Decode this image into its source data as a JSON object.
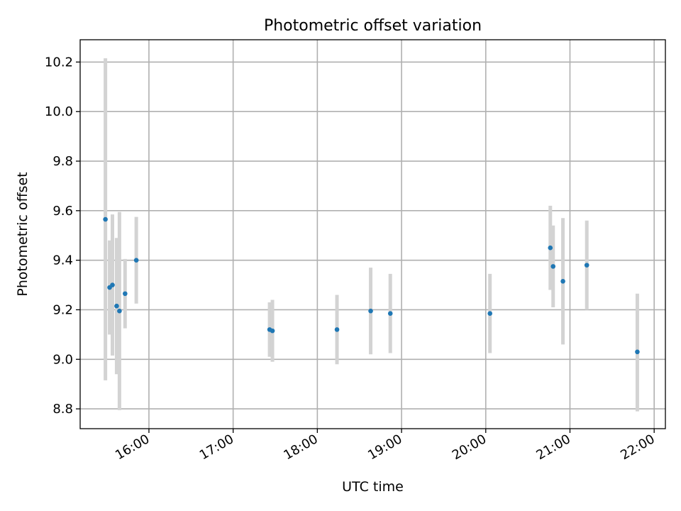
{
  "chart_data": {
    "type": "scatter",
    "title": "Photometric offset variation",
    "xlabel": "UTC time",
    "ylabel": "Photometric offset",
    "x_ticks": [
      "16:00",
      "17:00",
      "18:00",
      "19:00",
      "20:00",
      "21:00",
      "22:00"
    ],
    "y_ticks": [
      "8.8",
      "9.0",
      "9.2",
      "9.4",
      "9.6",
      "9.8",
      "10.0",
      "10.2"
    ],
    "xlim": [
      "15:11",
      "22:08"
    ],
    "ylim": [
      8.72,
      10.29
    ],
    "grid": true,
    "colors": {
      "point": "#1f77b4",
      "errorbar": "#d3d3d3",
      "grid": "#b0b0b0"
    },
    "points": [
      {
        "x": "15:29",
        "y": 9.565,
        "y_low": 8.915,
        "y_high": 10.215
      },
      {
        "x": "15:32",
        "y": 9.29,
        "y_low": 9.1,
        "y_high": 9.48
      },
      {
        "x": "15:34",
        "y": 9.3,
        "y_low": 9.015,
        "y_high": 9.585
      },
      {
        "x": "15:37",
        "y": 9.215,
        "y_low": 8.94,
        "y_high": 9.49
      },
      {
        "x": "15:39",
        "y": 9.195,
        "y_low": 8.795,
        "y_high": 9.595
      },
      {
        "x": "15:43",
        "y": 9.265,
        "y_low": 9.125,
        "y_high": 9.405
      },
      {
        "x": "15:51",
        "y": 9.4,
        "y_low": 9.225,
        "y_high": 9.575
      },
      {
        "x": "17:26",
        "y": 9.12,
        "y_low": 9.01,
        "y_high": 9.23
      },
      {
        "x": "17:28",
        "y": 9.115,
        "y_low": 8.99,
        "y_high": 9.24
      },
      {
        "x": "18:14",
        "y": 9.12,
        "y_low": 8.98,
        "y_high": 9.26
      },
      {
        "x": "18:38",
        "y": 9.195,
        "y_low": 9.02,
        "y_high": 9.37
      },
      {
        "x": "18:52",
        "y": 9.185,
        "y_low": 9.025,
        "y_high": 9.345
      },
      {
        "x": "20:03",
        "y": 9.185,
        "y_low": 9.025,
        "y_high": 9.345
      },
      {
        "x": "20:46",
        "y": 9.45,
        "y_low": 9.28,
        "y_high": 9.62
      },
      {
        "x": "20:48",
        "y": 9.375,
        "y_low": 9.21,
        "y_high": 9.54
      },
      {
        "x": "20:55",
        "y": 9.315,
        "y_low": 9.06,
        "y_high": 9.57
      },
      {
        "x": "21:12",
        "y": 9.38,
        "y_low": 9.2,
        "y_high": 9.56
      },
      {
        "x": "21:48",
        "y": 9.03,
        "y_low": 8.79,
        "y_high": 9.265
      }
    ]
  }
}
